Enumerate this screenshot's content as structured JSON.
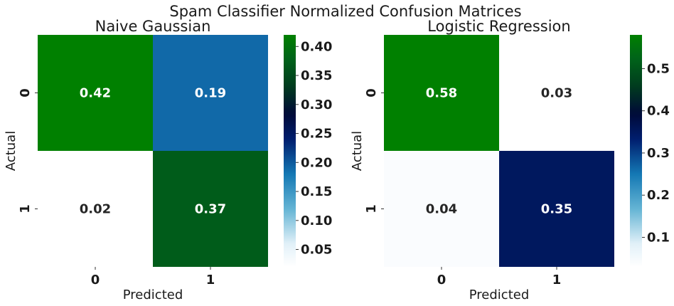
{
  "figure": {
    "suptitle": "Spam Classifier Normalized Confusion Matrices"
  },
  "chart_data": [
    {
      "type": "heatmap",
      "title": "Naive Gaussian",
      "xlabel": "Predicted",
      "ylabel": "Actual",
      "x_categories": [
        "0",
        "1"
      ],
      "y_categories": [
        "0",
        "1"
      ],
      "values": [
        [
          0.42,
          0.19
        ],
        [
          0.02,
          0.37
        ]
      ],
      "cell_labels": [
        [
          "0.42",
          "0.19"
        ],
        [
          "0.02",
          "0.37"
        ]
      ],
      "colormap": "ocean_r",
      "vmin": 0.02,
      "vmax": 0.42,
      "colorbar_ticks": [
        "0.05",
        "0.10",
        "0.15",
        "0.20",
        "0.25",
        "0.30",
        "0.35",
        "0.40"
      ]
    },
    {
      "type": "heatmap",
      "title": "Logistic Regression",
      "xlabel": "Predicted",
      "ylabel": "Actual",
      "x_categories": [
        "0",
        "1"
      ],
      "y_categories": [
        "0",
        "1"
      ],
      "values": [
        [
          0.58,
          0.03
        ],
        [
          0.04,
          0.35
        ]
      ],
      "cell_labels": [
        [
          "0.58",
          "0.03"
        ],
        [
          "0.04",
          "0.35"
        ]
      ],
      "colormap": "ocean_r",
      "vmin": 0.03,
      "vmax": 0.58,
      "colorbar_ticks": [
        "0.1",
        "0.2",
        "0.3",
        "0.4",
        "0.5"
      ]
    }
  ]
}
